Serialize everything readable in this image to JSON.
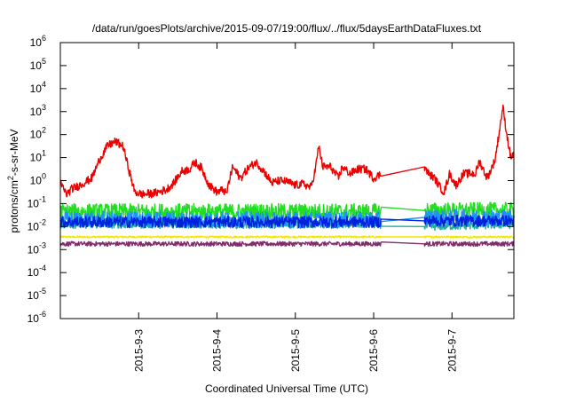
{
  "chart_data": {
    "type": "line",
    "title": "/data/run/goesPlots/archive/2015-09-07/19:00/flux/../flux/5daysEarthDataFluxes.txt",
    "xlabel": "Coordinated Universal Time (UTC)",
    "ylabel": "protons/cm²-s-sr-MeV",
    "yscale": "log",
    "ylim_exp": [
      -6,
      6
    ],
    "y_tick_base": "10",
    "y_tick_exponents": [
      "-6",
      "-5",
      "-4",
      "-3",
      "-2",
      "-1",
      "0",
      "1",
      "2",
      "3",
      "4",
      "5",
      "6"
    ],
    "xlim_days": [
      2.0,
      7.79
    ],
    "x_ticks": [
      {
        "day": 3,
        "label": "2015-9-3"
      },
      {
        "day": 4,
        "label": "2015-9-4"
      },
      {
        "day": 5,
        "label": "2015-9-5"
      },
      {
        "day": 6,
        "label": "2015-9-6"
      },
      {
        "day": 7,
        "label": "2015-9-7"
      }
    ],
    "gap": [
      6.1,
      6.65
    ],
    "grid": false,
    "legend": "none",
    "series": [
      {
        "color": "#f5e600",
        "noise": 0.04,
        "points": [
          [
            2.0,
            -2.45
          ],
          [
            6.1,
            -2.45
          ],
          [
            6.65,
            -2.45
          ],
          [
            7.79,
            -2.45
          ]
        ]
      },
      {
        "color": "#7f2d6b",
        "noise": 0.1,
        "points": [
          [
            2.0,
            -2.75
          ],
          [
            6.1,
            -2.75
          ],
          [
            6.65,
            -2.75
          ],
          [
            7.79,
            -2.75
          ]
        ]
      },
      {
        "color": "#20b0a0",
        "noise": 0.18,
        "points": [
          [
            2.0,
            -1.9
          ],
          [
            6.1,
            -1.9
          ],
          [
            6.65,
            -2.0
          ],
          [
            7.79,
            -1.9
          ]
        ]
      },
      {
        "color": "#22dd22",
        "noise": 0.35,
        "points": [
          [
            2.0,
            -1.35
          ],
          [
            6.1,
            -1.35
          ],
          [
            6.65,
            -1.3
          ],
          [
            7.79,
            -1.3
          ]
        ]
      },
      {
        "color": "#1e90ff",
        "noise": 0.35,
        "points": [
          [
            2.0,
            -1.7
          ],
          [
            6.1,
            -1.7
          ],
          [
            6.65,
            -1.6
          ],
          [
            7.79,
            -1.6
          ]
        ]
      },
      {
        "color": "#0022dd",
        "noise": 0.25,
        "points": [
          [
            2.0,
            -1.8
          ],
          [
            6.1,
            -1.8
          ],
          [
            6.65,
            -1.75
          ],
          [
            7.79,
            -1.75
          ]
        ]
      },
      {
        "color": "#ee0000",
        "noise": 0.18,
        "points": [
          [
            2.0,
            -0.1
          ],
          [
            2.08,
            -0.6
          ],
          [
            2.15,
            -0.35
          ],
          [
            2.25,
            -0.2
          ],
          [
            2.4,
            0.1
          ],
          [
            2.5,
            0.9
          ],
          [
            2.6,
            1.5
          ],
          [
            2.7,
            1.7
          ],
          [
            2.8,
            1.5
          ],
          [
            2.88,
            0.4
          ],
          [
            2.95,
            -0.5
          ],
          [
            3.05,
            -0.6
          ],
          [
            3.2,
            -0.55
          ],
          [
            3.35,
            -0.4
          ],
          [
            3.45,
            -0.1
          ],
          [
            3.55,
            0.4
          ],
          [
            3.65,
            0.5
          ],
          [
            3.72,
            0.8
          ],
          [
            3.8,
            0.55
          ],
          [
            3.9,
            -0.2
          ],
          [
            4.0,
            -0.5
          ],
          [
            4.08,
            -0.4
          ],
          [
            4.12,
            -0.6
          ],
          [
            4.15,
            -0.1
          ],
          [
            4.2,
            0.6
          ],
          [
            4.3,
            0.1
          ],
          [
            4.4,
            0.55
          ],
          [
            4.5,
            0.8
          ],
          [
            4.6,
            0.4
          ],
          [
            4.7,
            -0.1
          ],
          [
            4.8,
            0.0
          ],
          [
            4.9,
            -0.05
          ],
          [
            5.0,
            -0.2
          ],
          [
            5.1,
            -0.15
          ],
          [
            5.2,
            -0.3
          ],
          [
            5.25,
            0.4
          ],
          [
            5.3,
            1.5
          ],
          [
            5.35,
            0.6
          ],
          [
            5.45,
            0.6
          ],
          [
            5.55,
            0.1
          ],
          [
            5.6,
            0.6
          ],
          [
            5.7,
            0.3
          ],
          [
            5.8,
            0.5
          ],
          [
            5.9,
            0.5
          ],
          [
            6.0,
            0.1
          ],
          [
            6.1,
            0.3
          ],
          [
            6.65,
            0.6
          ],
          [
            6.7,
            0.3
          ],
          [
            6.78,
            0.1
          ],
          [
            6.85,
            -0.3
          ],
          [
            6.9,
            -0.5
          ],
          [
            6.97,
            0.3
          ],
          [
            7.05,
            -0.2
          ],
          [
            7.15,
            0.3
          ],
          [
            7.3,
            0.3
          ],
          [
            7.35,
            0.85
          ],
          [
            7.45,
            0.1
          ],
          [
            7.55,
            0.9
          ],
          [
            7.65,
            3.2
          ],
          [
            7.7,
            2.0
          ],
          [
            7.75,
            1.0
          ],
          [
            7.79,
            1.2
          ]
        ]
      }
    ]
  }
}
